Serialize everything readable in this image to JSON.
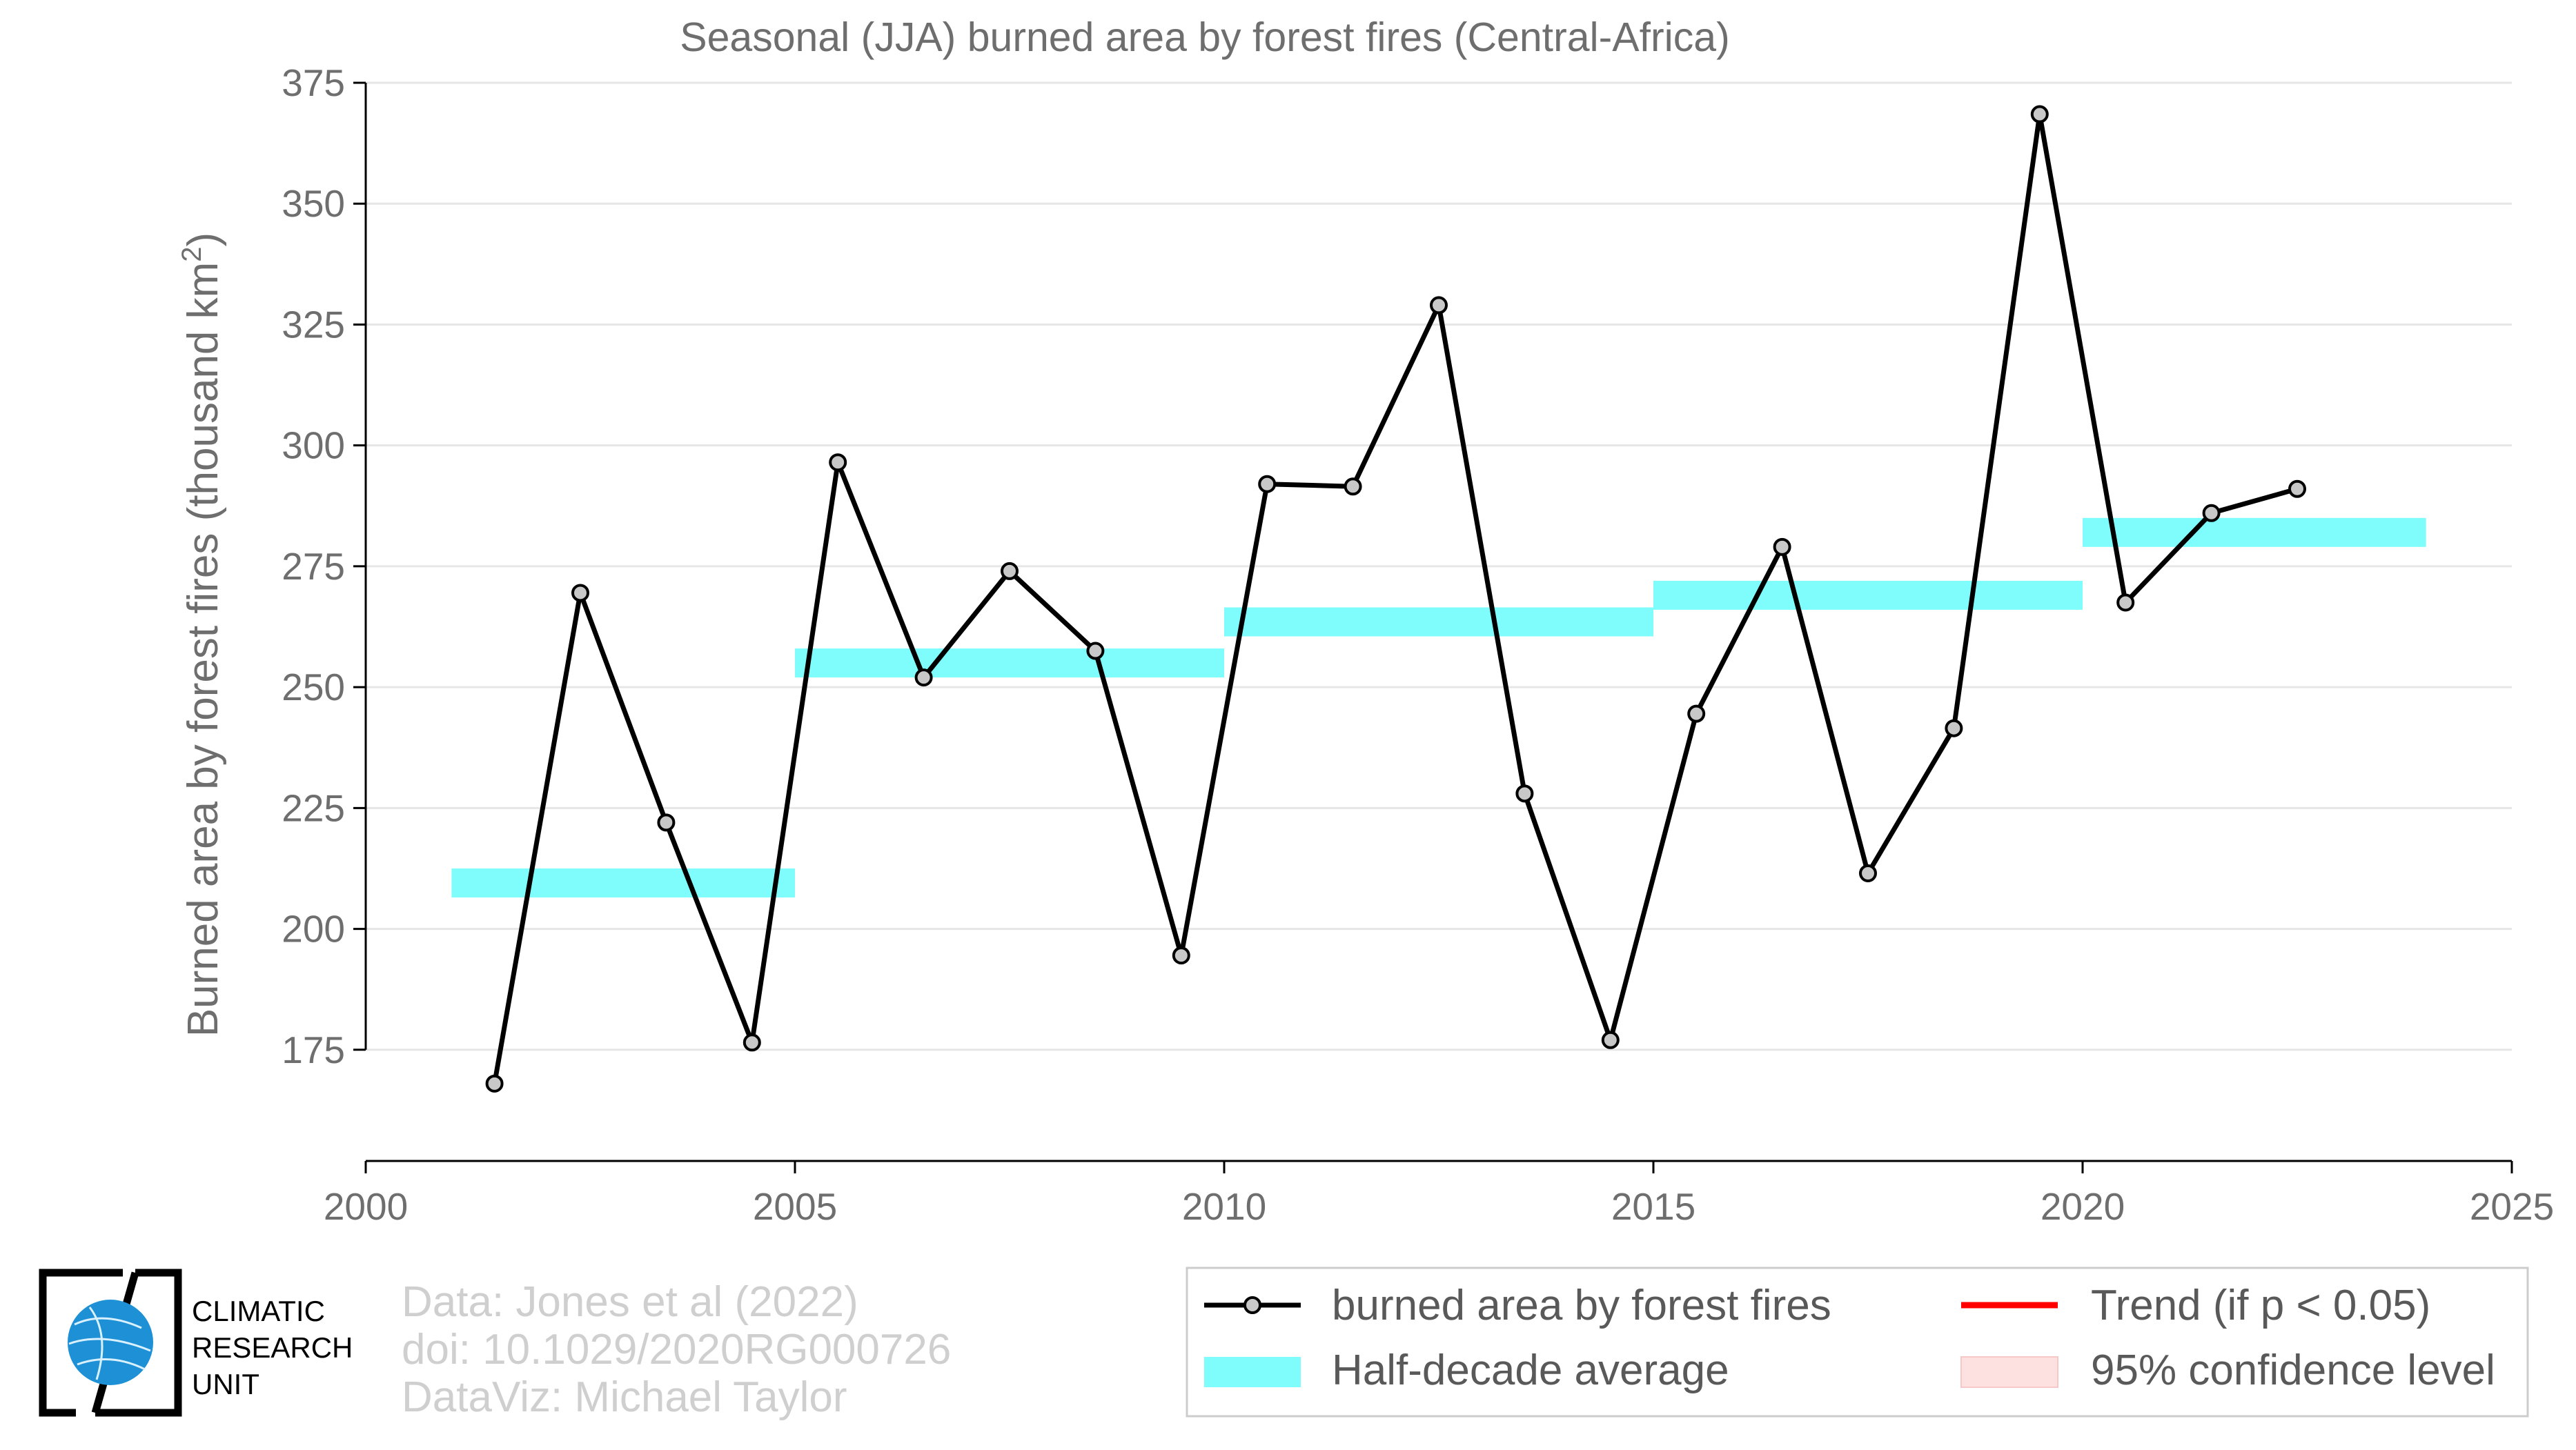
{
  "chart_data": {
    "type": "line",
    "title": "Seasonal (JJA) burned area by forest fires (Central-Africa)",
    "ylabel_main": "Burned area by forest fires (thousand km",
    "ylabel_sup": "2",
    "ylabel_end": ")",
    "xlabel": "",
    "xlim": [
      2000,
      2025
    ],
    "ylim": [
      152,
      375
    ],
    "x_ticks": [
      "2000",
      "2005",
      "2010",
      "2015",
      "2020",
      "2025"
    ],
    "y_ticks": [
      "175",
      "200",
      "225",
      "250",
      "275",
      "300",
      "325",
      "350",
      "375"
    ],
    "grid": "horizontal",
    "series": [
      {
        "name": "burned area by forest fires",
        "color": "#000000",
        "marker_fill": "#c8c8c8",
        "x": [
          2001.5,
          2002.5,
          2003.5,
          2004.5,
          2005.5,
          2006.5,
          2007.5,
          2008.5,
          2009.5,
          2010.5,
          2011.5,
          2012.5,
          2013.5,
          2014.5,
          2015.5,
          2016.5,
          2017.5,
          2018.5,
          2019.5,
          2020.5,
          2021.5,
          2022.5
        ],
        "y": [
          168,
          269.5,
          222,
          176.5,
          296.5,
          252,
          274,
          257.5,
          194.5,
          292,
          291.5,
          329,
          228,
          177,
          244.5,
          279,
          211.5,
          241.5,
          368.5,
          267.5,
          286,
          291
        ]
      }
    ],
    "half_decade_average": {
      "name": "Half-decade average",
      "color": "#7ffdfd",
      "segments": [
        {
          "x_start": 2001,
          "x_end": 2005,
          "y": 209.5
        },
        {
          "x_start": 2005,
          "x_end": 2010,
          "y": 255
        },
        {
          "x_start": 2010,
          "x_end": 2015,
          "y": 263.5
        },
        {
          "x_start": 2015,
          "x_end": 2020,
          "y": 269
        },
        {
          "x_start": 2020,
          "x_end": 2024,
          "y": 282
        }
      ]
    },
    "legend": {
      "placement": "bottom-right",
      "items": [
        {
          "label": "burned area by forest fires",
          "kind": "line-marker",
          "color": "#000000"
        },
        {
          "label": "Half-decade average",
          "kind": "band",
          "color": "#7ffdfd"
        },
        {
          "label": "Trend (if p < 0.05)",
          "kind": "line",
          "color": "#ff0000"
        },
        {
          "label": "95% confidence level",
          "kind": "band",
          "color": "#fde0e0"
        }
      ]
    }
  },
  "credits": {
    "line1": "Data: Jones et al (2022)",
    "line2": "doi: 10.1029/2020RG000726",
    "line3": "DataViz: Michael Taylor"
  },
  "logo": {
    "line1": "CLIMATIC",
    "line2": "RESEARCH",
    "line3": "UNIT",
    "globe_color": "#1e90d6"
  }
}
